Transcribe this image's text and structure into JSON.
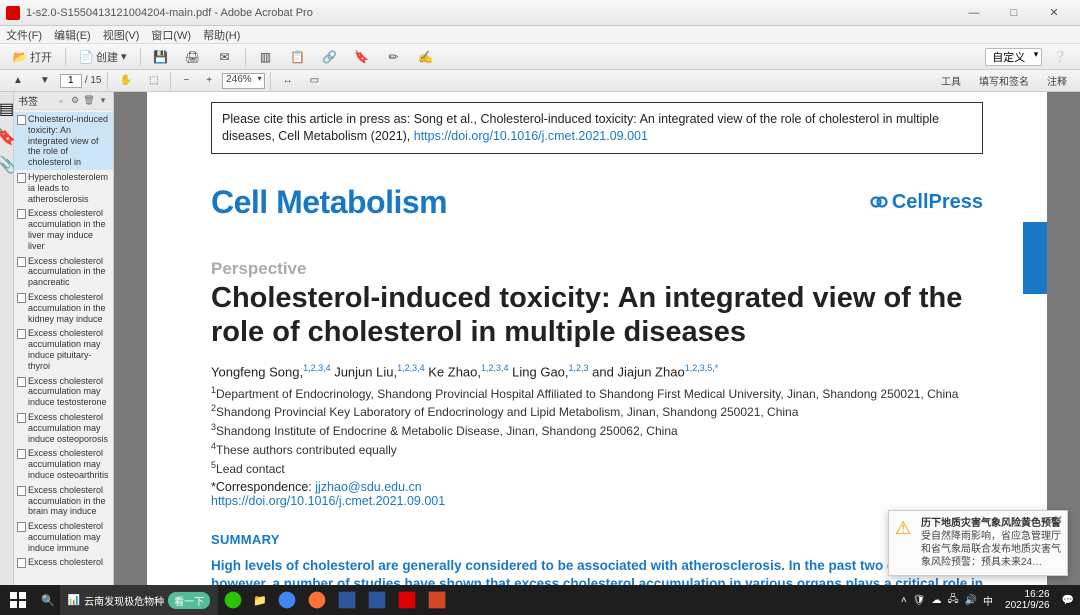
{
  "window": {
    "title": "1-s2.0-S1550413121004204-main.pdf - Adobe Acrobat Pro"
  },
  "menu": {
    "file": "文件(F)",
    "edit": "编辑(E)",
    "view": "视图(V)",
    "window": "窗口(W)",
    "help": "帮助(H)"
  },
  "toolbar": {
    "open": "打开",
    "create": "创建",
    "custom": "自定义",
    "page_current": "1",
    "page_total": "/ 15",
    "zoom": "246%",
    "rt_tools": "工具",
    "rt_sign": "填写和签名",
    "rt_comment": "注释"
  },
  "sidebar": {
    "title": "书签",
    "items": [
      "Cholesterol-induced toxicity: An integrated view of the role of cholesterol in",
      "Hypercholesterolemia leads to atherosclerosis",
      "Excess cholesterol accumulation in the liver may induce liver",
      "Excess cholesterol accumulation in the pancreatic",
      "Excess cholesterol accumulation in the kidney may induce",
      "Excess cholesterol accumulation may induce pituitary-thyroi",
      "Excess cholesterol accumulation may induce testosterone",
      "Excess cholesterol accumulation may induce osteoporosis",
      "Excess cholesterol accumulation may induce osteoarthritis",
      "Excess cholesterol accumulation in the brain may induce",
      "Excess cholesterol accumulation may induce immune",
      "Excess cholesterol"
    ]
  },
  "article": {
    "cite_text": "Please cite this article in press as: Song et al., Cholesterol-induced toxicity: An integrated view of the role of cholesterol in multiple diseases, Cell Metabolism (2021), ",
    "cite_doi": "https://doi.org/10.1016/j.cmet.2021.09.001",
    "journal": "Cell Metabolism",
    "publisher": "CellPress",
    "section": "Perspective",
    "title": "Cholesterol-induced toxicity: An integrated view of the role of cholesterol in multiple diseases",
    "authors_html": "Yongfeng Song,<span class='sup'>1,2,3,4</span> Junjun Liu,<span class='sup'>1,2,3,4</span> Ke Zhao,<span class='sup'>1,2,3,4</span> Ling Gao,<span class='sup'>1,2,3</span> and Jiajun Zhao<span class='sup'>1,2,3,5,*</span>",
    "affils": [
      "<span class='sup'>1</span>Department of Endocrinology, Shandong Provincial Hospital Affiliated to Shandong First Medical University, Jinan, Shandong 250021, China",
      "<span class='sup'>2</span>Shandong Provincial Key Laboratory of Endocrinology and Lipid Metabolism, Jinan, Shandong 250021, China",
      "<span class='sup'>3</span>Shandong Institute of Endocrine & Metabolic Disease, Jinan, Shandong 250062, China",
      "<span class='sup'>4</span>These authors contributed equally",
      "<span class='sup'>5</span>Lead contact"
    ],
    "corresp_label": "*Correspondence: ",
    "corresp_email": "jjzhao@sdu.edu.cn",
    "doi": "https://doi.org/10.1016/j.cmet.2021.09.001",
    "summary_h": "SUMMARY",
    "summary_p": "High levels of cholesterol are generally considered to be associated with atherosclerosis. In the past two decades, however, a number of studies have shown that excess cholesterol accumulation in various organs plays a critical role in the pathogenesis of multiple diseases. Here, we summarize the effects of cholesterol on disease pathogenesis, including liver diseases, diabetes, chronic kidney disease"
  },
  "popup": {
    "title": "历下地质灾害气象风险黄色预警",
    "body": "受自然降雨影响，省应急管理厅和省气象局联合发布地质灾害气象风险预警：预具未来24…"
  },
  "taskbar": {
    "search": "云南发现极危物种",
    "search_btn": "看一下",
    "time": "16:26",
    "date": "2021/9/26"
  }
}
